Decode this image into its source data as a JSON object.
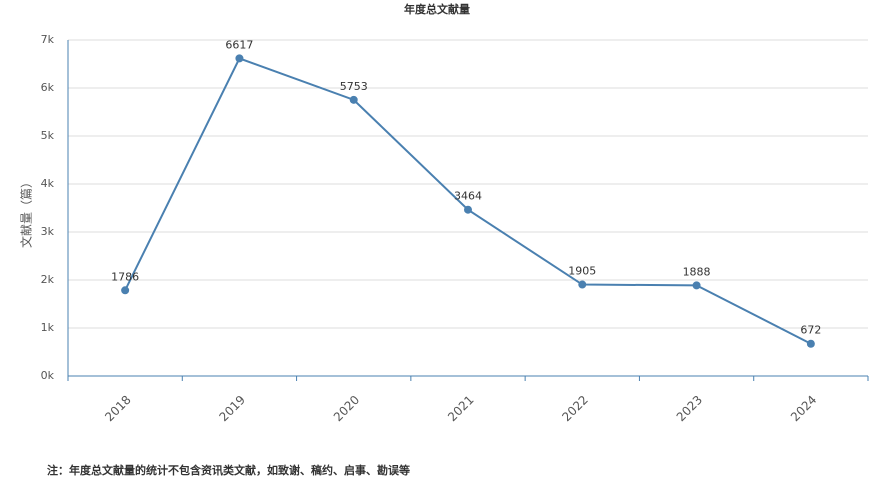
{
  "chart_data": {
    "type": "line",
    "title": "年度总文献量",
    "y_label": "文献量（篇）",
    "categories": [
      "2018",
      "2019",
      "2020",
      "2021",
      "2022",
      "2023",
      "2024"
    ],
    "series": [
      {
        "name": "年度总文献量",
        "color": "#4a80b0",
        "values": [
          1786,
          6617,
          5753,
          3464,
          1905,
          1888,
          672
        ]
      }
    ],
    "ylim": [
      0,
      7000
    ],
    "yticks": [
      {
        "value": 0,
        "label": "0k"
      },
      {
        "value": 1000,
        "label": "1k"
      },
      {
        "value": 2000,
        "label": "2k"
      },
      {
        "value": 3000,
        "label": "3k"
      },
      {
        "value": 4000,
        "label": "4k"
      },
      {
        "value": 5000,
        "label": "5k"
      },
      {
        "value": 6000,
        "label": "6k"
      },
      {
        "value": 7000,
        "label": "7k"
      }
    ],
    "grid": true,
    "note": "注：年度总文献量的统计不包含资讯类文献，如致谢、稿约、启事、勘误等"
  }
}
